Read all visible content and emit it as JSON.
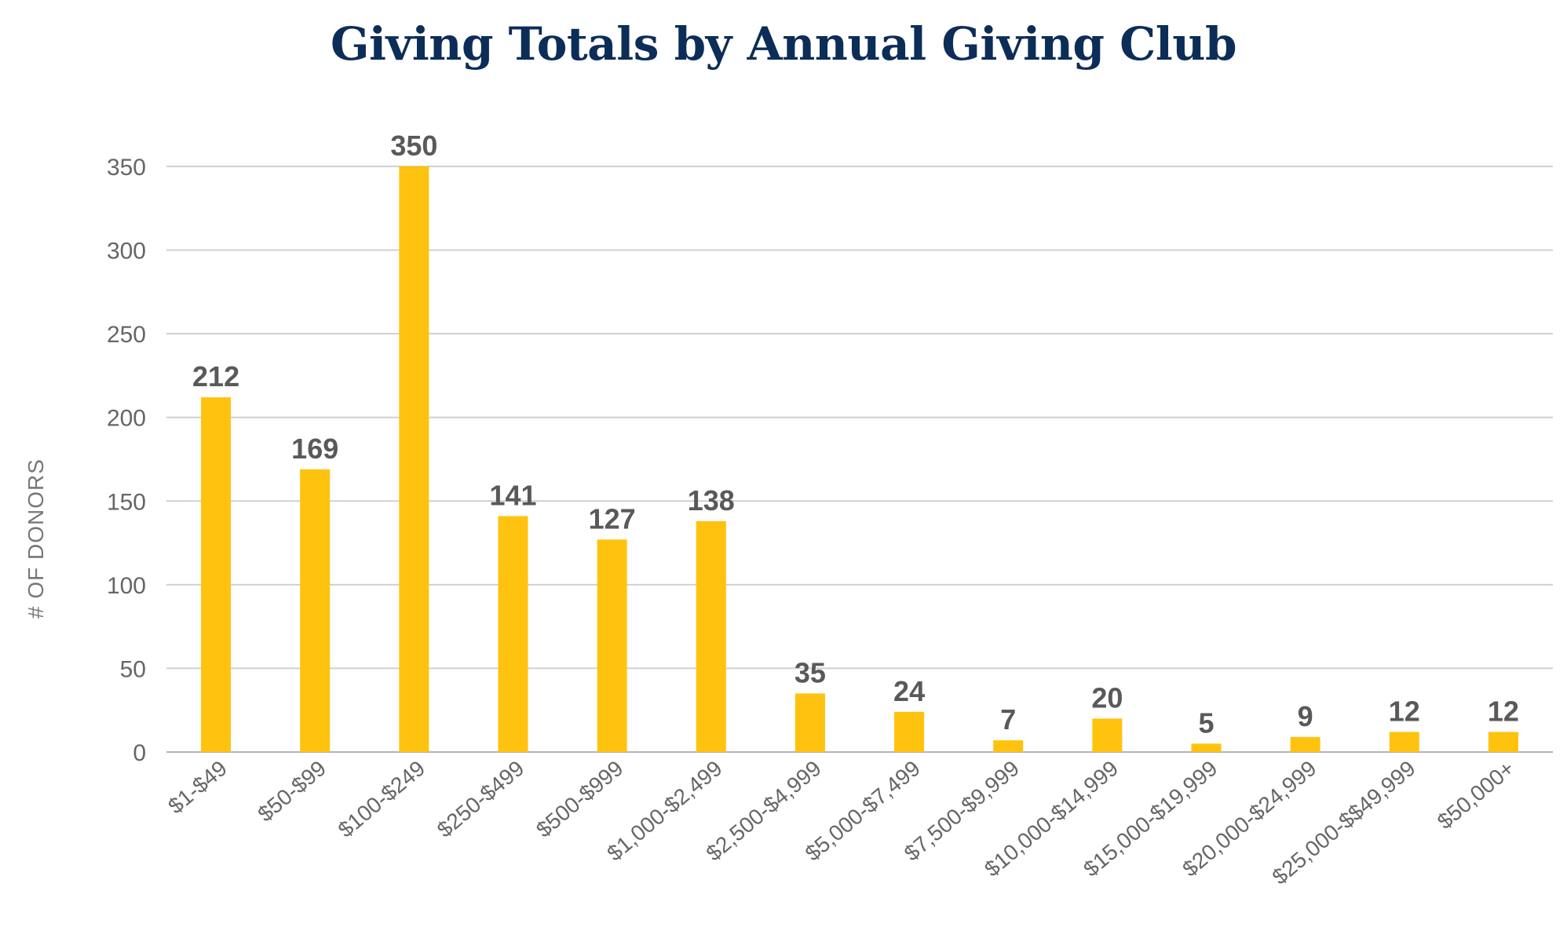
{
  "chart_data": {
    "type": "bar",
    "title": "Giving Totals by Annual Giving Club",
    "xlabel": "",
    "ylabel": "# OF DONORS",
    "ylim": [
      0,
      350
    ],
    "yticks": [
      0,
      50,
      100,
      150,
      200,
      250,
      300,
      350
    ],
    "grid": true,
    "legend": "none",
    "bar_color": "#FFC20E",
    "categories": [
      "$1-$49",
      "$50-$99",
      "$100-$249",
      "$250-$499",
      "$500-$999",
      "$1,000-$2,499",
      "$2,500-$4,999",
      "$5,000-$7,499",
      "$7,500-$9,999",
      "$10,000-$14,999",
      "$15,000-$19,999",
      "$20,000-$24,999",
      "$25,000-$$49,999",
      "$50,000+"
    ],
    "values": [
      212,
      169,
      350,
      141,
      127,
      138,
      35,
      24,
      7,
      20,
      5,
      9,
      12,
      12
    ]
  }
}
